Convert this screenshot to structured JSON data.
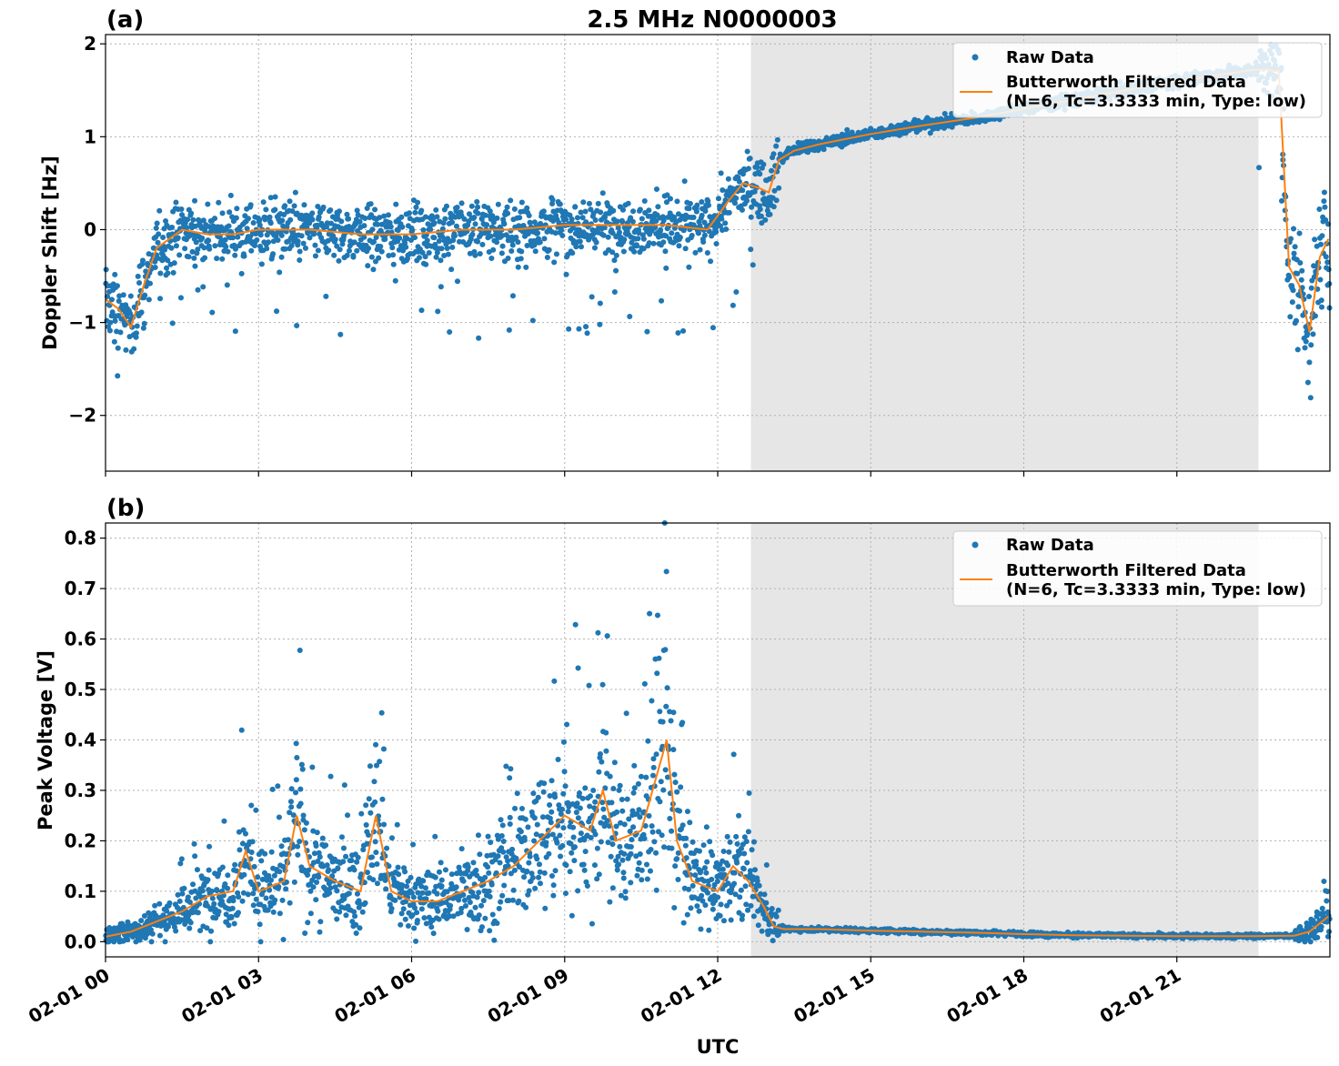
{
  "title": "2.5 MHz N0000003",
  "colors": {
    "raw": "#1f77b4",
    "filtered": "#ff7f0e",
    "shade": "#e6e6e6",
    "grid": "#b0b0b0"
  },
  "chart_data": [
    {
      "panel": "(a)",
      "type": "scatter+line",
      "ylabel": "Doppler Shift [Hz]",
      "ylim": [
        -2.6,
        2.1
      ],
      "yticks": [
        {
          "v": 2,
          "label": "2"
        },
        {
          "v": 1,
          "label": "1"
        },
        {
          "v": 0,
          "label": "0"
        },
        {
          "v": -1,
          "label": "−1"
        },
        {
          "v": -2,
          "label": "−2"
        }
      ],
      "legend": {
        "position": "upper right",
        "raw": "Raw Data",
        "filtered_line1": "Butterworth Filtered Data",
        "filtered_line2": "(N=6, Tc=3.3333 min, Type: low)"
      },
      "filtered_series": {
        "name": "Butterworth Filtered Data",
        "x_hours": [
          0,
          0.25,
          0.5,
          0.75,
          1,
          1.5,
          2,
          2.5,
          3,
          4,
          5,
          6,
          7,
          8,
          9,
          10,
          11,
          11.8,
          12.2,
          12.5,
          12.8,
          13.0,
          13.2,
          13.5,
          14,
          15,
          16,
          17,
          18,
          19,
          20,
          21,
          22,
          22.5,
          22.8,
          23.0,
          23.2,
          23.4,
          23.6,
          23.8,
          23.97
        ],
        "y": [
          -0.75,
          -0.85,
          -1.05,
          -0.6,
          -0.2,
          0.0,
          -0.05,
          -0.05,
          0.0,
          0.0,
          -0.05,
          -0.05,
          0.0,
          0.0,
          0.05,
          0.05,
          0.05,
          0.0,
          0.3,
          0.5,
          0.45,
          0.4,
          0.75,
          0.85,
          0.92,
          1.03,
          1.12,
          1.2,
          1.3,
          1.4,
          1.5,
          1.6,
          1.68,
          1.72,
          1.72,
          1.7,
          -0.4,
          -0.6,
          -1.1,
          -0.3,
          -0.1
        ]
      },
      "raw_series": {
        "name": "Raw Data",
        "x_range_hours": [
          0,
          24
        ]
      }
    },
    {
      "panel": "(b)",
      "type": "scatter+line",
      "ylabel": "Peak Voltage [V]",
      "ylim": [
        -0.03,
        0.83
      ],
      "yticks": [
        {
          "v": 0.8,
          "label": "0.8"
        },
        {
          "v": 0.7,
          "label": "0.7"
        },
        {
          "v": 0.6,
          "label": "0.6"
        },
        {
          "v": 0.5,
          "label": "0.5"
        },
        {
          "v": 0.4,
          "label": "0.4"
        },
        {
          "v": 0.3,
          "label": "0.3"
        },
        {
          "v": 0.2,
          "label": "0.2"
        },
        {
          "v": 0.1,
          "label": "0.1"
        },
        {
          "v": 0.0,
          "label": "0.0"
        }
      ],
      "legend": {
        "position": "upper right",
        "raw": "Raw Data",
        "filtered_line1": "Butterworth Filtered Data",
        "filtered_line2": "(N=6, Tc=3.3333 min, Type: low)"
      },
      "filtered_series": {
        "name": "Butterworth Filtered Data",
        "x_hours": [
          0,
          0.5,
          1,
          1.5,
          2,
          2.5,
          2.75,
          3,
          3.5,
          3.75,
          4,
          4.5,
          5,
          5.3,
          5.6,
          6,
          6.5,
          7,
          7.5,
          8,
          8.5,
          9,
          9.5,
          9.75,
          10,
          10.5,
          11,
          11.2,
          11.5,
          12,
          12.3,
          12.6,
          12.9,
          13.1,
          13.3,
          14,
          15,
          16,
          17,
          18,
          19,
          20,
          21,
          22,
          22.5,
          23.3,
          23.6,
          23.97
        ],
        "y": [
          0.01,
          0.02,
          0.04,
          0.06,
          0.09,
          0.1,
          0.18,
          0.1,
          0.12,
          0.25,
          0.15,
          0.12,
          0.1,
          0.25,
          0.1,
          0.08,
          0.08,
          0.1,
          0.12,
          0.15,
          0.2,
          0.25,
          0.22,
          0.3,
          0.2,
          0.22,
          0.4,
          0.2,
          0.12,
          0.1,
          0.15,
          0.12,
          0.07,
          0.03,
          0.025,
          0.025,
          0.022,
          0.02,
          0.018,
          0.015,
          0.013,
          0.012,
          0.011,
          0.011,
          0.011,
          0.012,
          0.02,
          0.05
        ]
      },
      "raw_series": {
        "name": "Raw Data",
        "x_range_hours": [
          0,
          24
        ]
      }
    }
  ],
  "x_axis": {
    "label": "UTC",
    "xlim_hours": [
      0,
      24
    ],
    "ticks": [
      {
        "h": 0,
        "label": "02-01 00"
      },
      {
        "h": 3,
        "label": "02-01 03"
      },
      {
        "h": 6,
        "label": "02-01 06"
      },
      {
        "h": 9,
        "label": "02-01 09"
      },
      {
        "h": 12,
        "label": "02-01 12"
      },
      {
        "h": 15,
        "label": "02-01 15"
      },
      {
        "h": 18,
        "label": "02-01 18"
      },
      {
        "h": 21,
        "label": "02-01 21"
      }
    ]
  },
  "shaded_region_hours": [
    12.65,
    22.6
  ]
}
